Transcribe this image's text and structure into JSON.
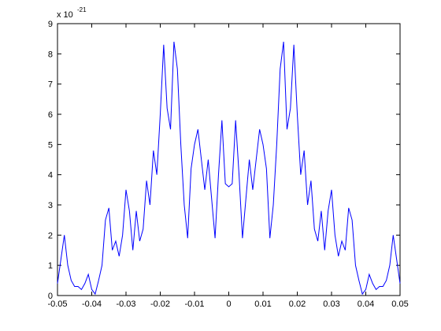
{
  "chart_data": {
    "type": "line",
    "y_exponent": {
      "base": "x 10",
      "power": "-21"
    },
    "x": [
      -0.05,
      -0.049,
      -0.048,
      -0.047,
      -0.046,
      -0.045,
      -0.044,
      -0.043,
      -0.042,
      -0.041,
      -0.04,
      -0.039,
      -0.038,
      -0.037,
      -0.036,
      -0.035,
      -0.034,
      -0.033,
      -0.032,
      -0.031,
      -0.03,
      -0.029,
      -0.028,
      -0.027,
      -0.026,
      -0.025,
      -0.024,
      -0.023,
      -0.022,
      -0.021,
      -0.02,
      -0.019,
      -0.018,
      -0.017,
      -0.016,
      -0.015,
      -0.014,
      -0.013,
      -0.012,
      -0.011,
      -0.01,
      -0.009,
      -0.008,
      -0.007,
      -0.006,
      -0.005,
      -0.004,
      -0.003,
      -0.002,
      -0.001,
      0,
      0.001,
      0.002,
      0.003,
      0.004,
      0.005,
      0.006,
      0.007,
      0.008,
      0.009,
      0.01,
      0.011,
      0.012,
      0.013,
      0.014,
      0.015,
      0.016,
      0.017,
      0.018,
      0.019,
      0.02,
      0.021,
      0.022,
      0.023,
      0.024,
      0.025,
      0.026,
      0.027,
      0.028,
      0.029,
      0.03,
      0.031,
      0.032,
      0.033,
      0.034,
      0.035,
      0.036,
      0.037,
      0.038,
      0.039,
      0.04,
      0.041,
      0.042,
      0.043,
      0.044,
      0.045,
      0.046,
      0.047,
      0.048,
      0.049,
      0.05
    ],
    "series": [
      {
        "color": "#0000ff",
        "values": [
          0.4,
          1.2,
          2.0,
          1.0,
          0.5,
          0.3,
          0.3,
          0.2,
          0.4,
          0.7,
          0.2,
          0.05,
          0.5,
          1.0,
          2.5,
          2.9,
          1.5,
          1.8,
          1.3,
          2.0,
          3.5,
          2.8,
          1.5,
          2.8,
          1.8,
          2.2,
          3.8,
          3.0,
          4.8,
          4.0,
          6.0,
          8.3,
          6.2,
          5.5,
          8.4,
          7.5,
          5.0,
          3.0,
          1.9,
          4.2,
          5.0,
          5.5,
          4.5,
          3.5,
          4.5,
          3.2,
          1.9,
          4.0,
          5.8,
          3.7,
          3.6,
          3.7,
          5.8,
          4.0,
          1.9,
          3.2,
          4.5,
          3.5,
          4.5,
          5.5,
          5.0,
          4.2,
          1.9,
          3.0,
          5.0,
          7.5,
          8.4,
          5.5,
          6.2,
          8.3,
          6.0,
          4.0,
          4.8,
          3.0,
          3.8,
          2.2,
          1.8,
          2.8,
          1.5,
          2.8,
          3.5,
          2.0,
          1.3,
          1.8,
          1.5,
          2.9,
          2.5,
          1.0,
          0.5,
          0.05,
          0.2,
          0.7,
          0.4,
          0.2,
          0.3,
          0.3,
          0.5,
          1.0,
          2.0,
          1.2,
          0.4
        ]
      }
    ],
    "xlim": [
      -0.05,
      0.05
    ],
    "xticks": [
      -0.05,
      -0.04,
      -0.03,
      -0.02,
      -0.01,
      0,
      0.01,
      0.02,
      0.03,
      0.04,
      0.05
    ],
    "ylim": [
      0,
      9
    ],
    "yticks": [
      0,
      1,
      2,
      3,
      4,
      5,
      6,
      7,
      8,
      9
    ],
    "grid": false
  }
}
